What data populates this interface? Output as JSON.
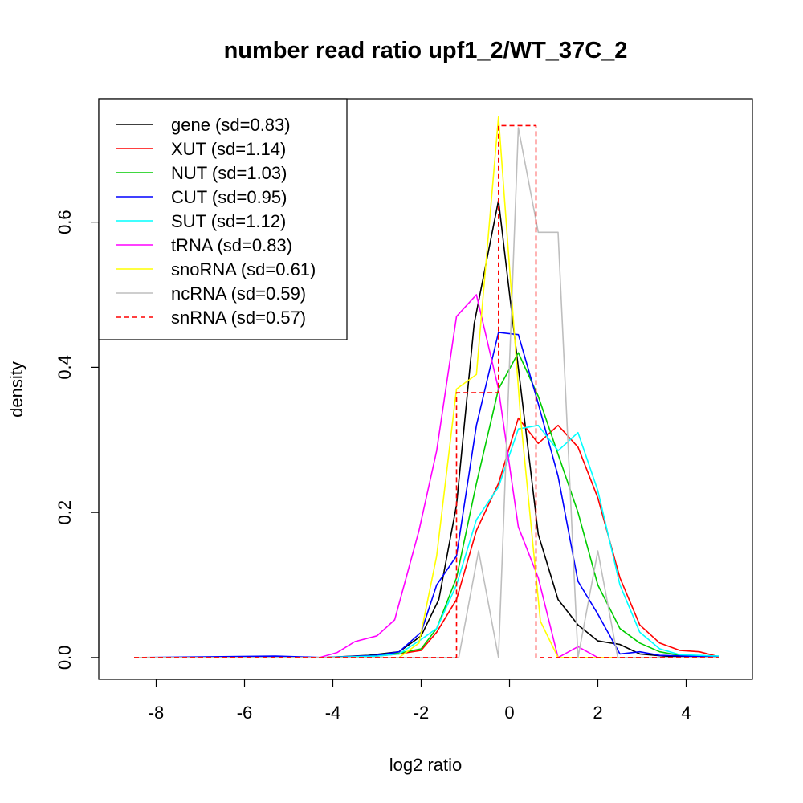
{
  "chart_data": {
    "type": "line",
    "title": "number read ratio upf1_2/WT_37C_2",
    "xlabel": "log2 ratio",
    "ylabel": "density",
    "xlim": [
      -9.3,
      5.5
    ],
    "ylim": [
      -0.03,
      0.77
    ],
    "x_ticks": [
      -8,
      -6,
      -4,
      -2,
      0,
      2,
      4
    ],
    "x_tick_labels": [
      "-8",
      "-6",
      "-4",
      "-2",
      "0",
      "2",
      "4"
    ],
    "y_ticks": [
      0.0,
      0.2,
      0.4,
      0.6
    ],
    "y_tick_labels": [
      "0.0",
      "0.2",
      "0.4",
      "0.6"
    ],
    "legend_position": "top-left",
    "series": [
      {
        "name": "gene",
        "legend": "gene (sd=0.83)",
        "color": "#000000",
        "dash": "solid",
        "x": [
          -8.5,
          -4.2,
          -3.2,
          -2.5,
          -2.0,
          -1.6,
          -1.2,
          -0.8,
          -0.25,
          0.1,
          0.65,
          1.1,
          1.55,
          2.0,
          2.5,
          2.95,
          3.5,
          4.0,
          4.75
        ],
        "y": [
          0,
          0,
          0.003,
          0.008,
          0.03,
          0.08,
          0.21,
          0.46,
          0.63,
          0.45,
          0.17,
          0.08,
          0.045,
          0.023,
          0.018,
          0.005,
          0.002,
          0.001,
          0
        ]
      },
      {
        "name": "XUT",
        "legend": "XUT (sd=1.14)",
        "color": "#ff0000",
        "dash": "solid",
        "x": [
          -8.5,
          -4.2,
          -3.0,
          -2.5,
          -2.0,
          -1.65,
          -1.2,
          -0.75,
          -0.25,
          0.2,
          0.65,
          1.1,
          1.55,
          2.0,
          2.5,
          2.95,
          3.4,
          3.85,
          4.3,
          4.75
        ],
        "y": [
          0,
          0,
          0.002,
          0.005,
          0.01,
          0.035,
          0.08,
          0.175,
          0.24,
          0.33,
          0.295,
          0.32,
          0.29,
          0.22,
          0.11,
          0.045,
          0.02,
          0.01,
          0.008,
          0.001
        ]
      },
      {
        "name": "NUT",
        "legend": "NUT (sd=1.03)",
        "color": "#00cc00",
        "dash": "solid",
        "x": [
          -8.5,
          -4.2,
          -3.0,
          -2.5,
          -2.0,
          -1.65,
          -1.2,
          -0.75,
          -0.25,
          0.2,
          0.65,
          1.1,
          1.55,
          2.0,
          2.5,
          2.95,
          3.4,
          3.85,
          4.3,
          4.75
        ],
        "y": [
          0,
          0,
          0.003,
          0.006,
          0.012,
          0.04,
          0.11,
          0.24,
          0.37,
          0.42,
          0.36,
          0.28,
          0.2,
          0.1,
          0.04,
          0.02,
          0.008,
          0.003,
          0.002,
          0.001
        ]
      },
      {
        "name": "CUT",
        "legend": "CUT (sd=0.95)",
        "color": "#0000ff",
        "dash": "solid",
        "x": [
          -8.5,
          -5.3,
          -4.2,
          -3.0,
          -2.5,
          -2.0,
          -1.65,
          -1.2,
          -0.75,
          -0.25,
          0.2,
          0.65,
          1.1,
          1.55,
          2.0,
          2.5,
          2.95,
          3.4,
          4.0,
          4.75
        ],
        "y": [
          0,
          0.002,
          0,
          0.003,
          0.008,
          0.035,
          0.1,
          0.14,
          0.32,
          0.448,
          0.445,
          0.35,
          0.25,
          0.105,
          0.06,
          0.005,
          0.008,
          0.003,
          0.002,
          0.001
        ]
      },
      {
        "name": "SUT",
        "legend": "SUT (sd=1.12)",
        "color": "#00ffff",
        "dash": "solid",
        "x": [
          -8.5,
          -4.2,
          -3.0,
          -2.5,
          -2.0,
          -1.65,
          -1.2,
          -0.75,
          -0.25,
          0.2,
          0.65,
          1.1,
          1.55,
          2.0,
          2.5,
          2.95,
          3.4,
          3.85,
          4.3,
          4.75
        ],
        "y": [
          0,
          0,
          0.002,
          0.005,
          0.025,
          0.04,
          0.1,
          0.19,
          0.235,
          0.315,
          0.32,
          0.285,
          0.31,
          0.23,
          0.1,
          0.035,
          0.012,
          0.004,
          0.003,
          0.002
        ]
      },
      {
        "name": "tRNA",
        "legend": "tRNA (sd=0.83)",
        "color": "#ff00ff",
        "dash": "solid",
        "x": [
          -8.5,
          -4.3,
          -3.9,
          -3.5,
          -3.0,
          -2.6,
          -2.05,
          -1.65,
          -1.2,
          -0.75,
          -0.25,
          0.2,
          0.65,
          1.1,
          1.55,
          2.0,
          4.75
        ],
        "y": [
          0,
          0,
          0.007,
          0.022,
          0.03,
          0.052,
          0.175,
          0.285,
          0.47,
          0.5,
          0.37,
          0.18,
          0.11,
          0.0,
          0.015,
          0.0,
          0.0
        ]
      },
      {
        "name": "snoRNA",
        "legend": "snoRNA (sd=0.61)",
        "color": "#ffff00",
        "dash": "solid",
        "x": [
          -8.5,
          -2.5,
          -2.05,
          -1.65,
          -1.2,
          -0.75,
          -0.25,
          0.25,
          0.7,
          1.1,
          4.75
        ],
        "y": [
          0,
          0,
          0.02,
          0.14,
          0.37,
          0.39,
          0.745,
          0.33,
          0.05,
          0.0,
          0.0
        ]
      },
      {
        "name": "ncRNA",
        "legend": "ncRNA (sd=0.59)",
        "color": "#bebebe",
        "dash": "solid",
        "x": [
          -8.5,
          -1.15,
          -0.7,
          -0.25,
          0.2,
          0.65,
          1.1,
          1.55,
          2.0,
          2.45,
          4.75
        ],
        "y": [
          0,
          0,
          0.147,
          0.0,
          0.73,
          0.586,
          0.586,
          0.0,
          0.147,
          0.0,
          0.0
        ]
      },
      {
        "name": "snRNA",
        "legend": "snRNA (sd=0.57)",
        "color": "#ff0000",
        "dash": "dashed",
        "x": [
          -8.5,
          -1.65,
          -1.65,
          -1.2,
          -1.2,
          -0.75,
          -0.75,
          -0.55,
          -0.55,
          -0.25,
          -0.25,
          0.2,
          0.2,
          0.6,
          0.6,
          4.75
        ],
        "y": [
          0,
          0,
          0.0,
          0.0,
          0.365,
          0.365,
          0.365,
          0.365,
          0.365,
          0.365,
          0.733,
          0.733,
          0.733,
          0.733,
          0.0,
          0.0
        ]
      }
    ]
  }
}
